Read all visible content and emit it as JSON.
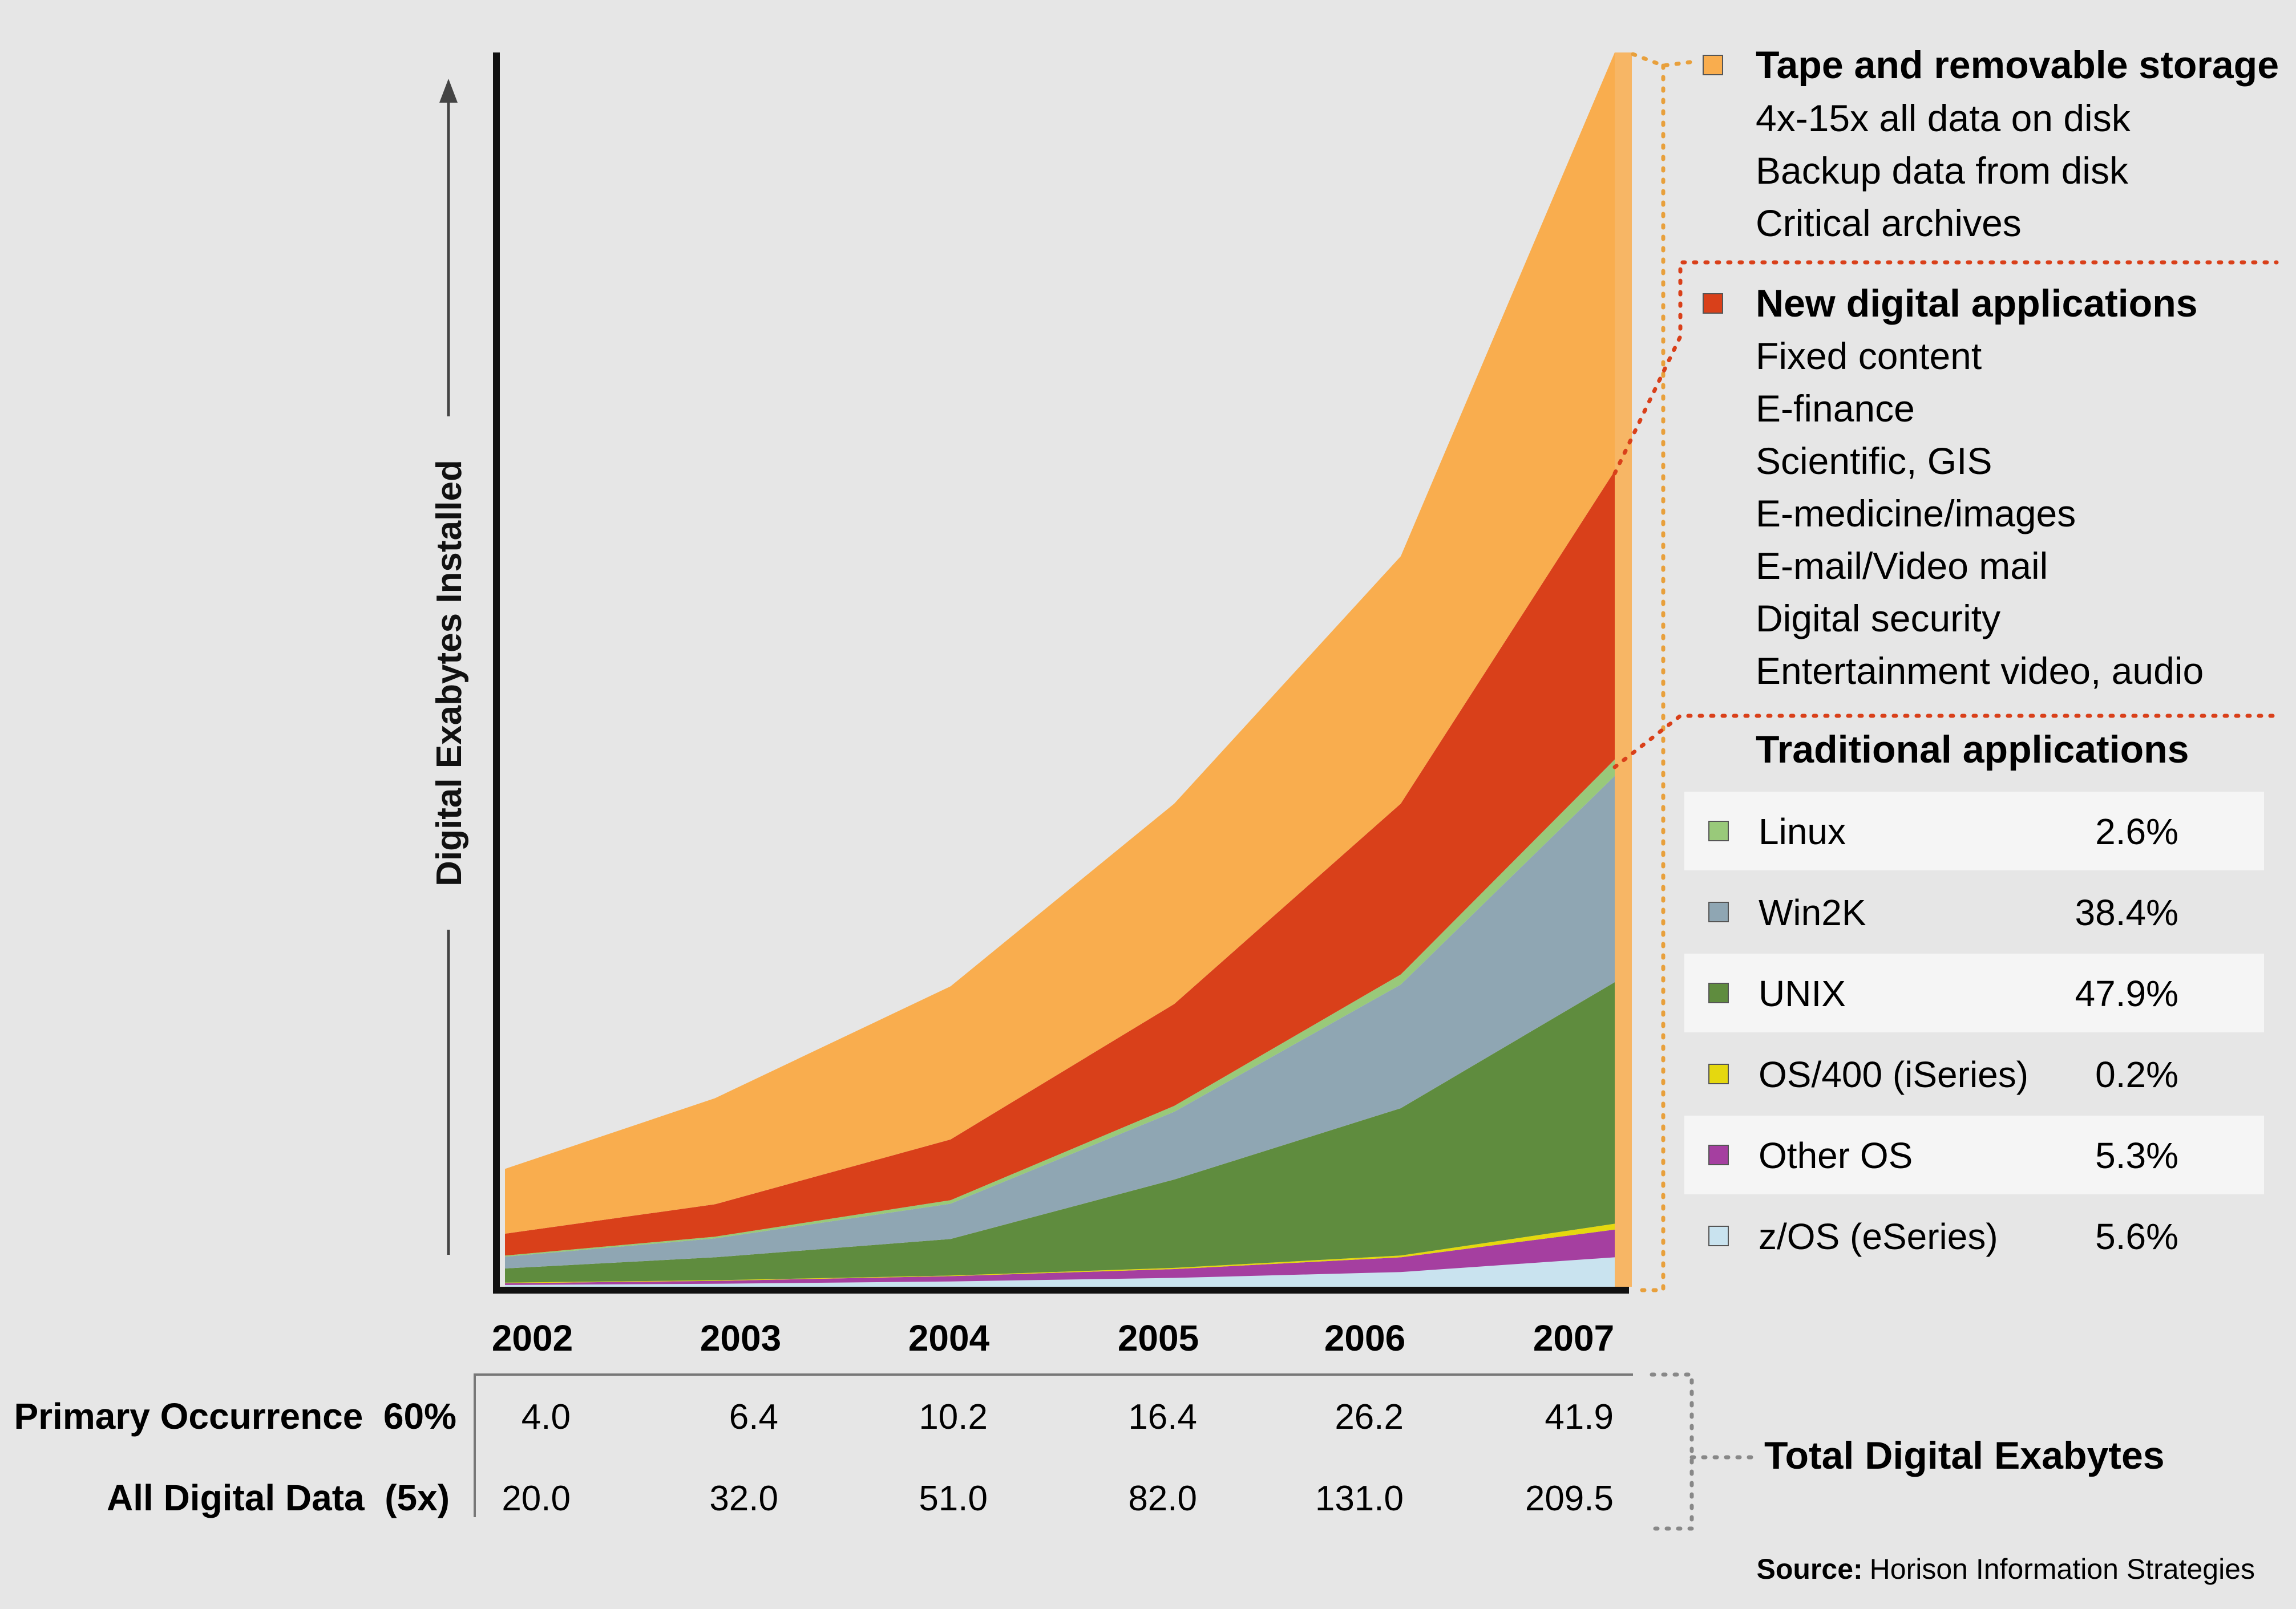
{
  "y_axis_label": "Digital Exabytes Installed",
  "legend": {
    "tape": {
      "title": "Tape and removable storage",
      "color": "#f9ad4e",
      "items": [
        "4x-15x all data on disk",
        "Backup data from disk",
        "Critical archives"
      ]
    },
    "new_apps": {
      "title": "New digital applications",
      "color": "#d9401a",
      "items": [
        "Fixed content",
        "E-finance",
        "Scientific, GIS",
        "E-medicine/images",
        "E-mail/Video mail",
        "Digital security",
        "Entertainment video, audio"
      ]
    },
    "traditional": {
      "title": "Traditional applications",
      "rows": [
        {
          "name": "Linux",
          "pct": "2.6%",
          "color": "#99c97a"
        },
        {
          "name": "Win2K",
          "pct": "38.4%",
          "color": "#8fa6b3"
        },
        {
          "name": "UNIX",
          "pct": "47.9%",
          "color": "#5f8c3e"
        },
        {
          "name": "OS/400 (iSeries)",
          "pct": "0.2%",
          "color": "#e5d80f"
        },
        {
          "name": "Other OS",
          "pct": "5.3%",
          "color": "#a53fa0"
        },
        {
          "name": "z/OS (eSeries)",
          "pct": "5.6%",
          "color": "#c9e3ef"
        }
      ]
    }
  },
  "table": {
    "rows": [
      {
        "label": "Primary Occurrence  60%",
        "values": [
          "4.0",
          "6.4",
          "10.2",
          "16.4",
          "26.2",
          "41.9"
        ]
      },
      {
        "label": "All Digital Data  (5x)",
        "values": [
          "20.0",
          "32.0",
          "51.0",
          "82.0",
          "131.0",
          "209.5"
        ]
      }
    ],
    "total_label": "Total Digital Exabytes"
  },
  "source": {
    "label": "Source:",
    "text": "Horison Information Strategies"
  },
  "chart_data": {
    "type": "area",
    "stacked": true,
    "x": [
      "2002",
      "2003",
      "2004",
      "2005",
      "2006",
      "2007"
    ],
    "ylim": [
      0,
      209.5
    ],
    "ylabel": "Digital Exabytes Installed",
    "series": [
      {
        "name": "z/OS (eSeries)",
        "color": "#c9e3ef",
        "values": [
          0.3,
          0.5,
          0.9,
          1.5,
          2.5,
          5.0
        ]
      },
      {
        "name": "Other OS",
        "color": "#a53fa0",
        "values": [
          0.3,
          0.5,
          0.9,
          1.5,
          2.5,
          4.7
        ]
      },
      {
        "name": "OS/400 (iSeries)",
        "color": "#e5d80f",
        "values": [
          0.1,
          0.1,
          0.1,
          0.2,
          0.3,
          1.0
        ]
      },
      {
        "name": "UNIX",
        "color": "#5f8c3e",
        "values": [
          2.4,
          3.9,
          6.2,
          15.0,
          25.0,
          41.0
        ]
      },
      {
        "name": "Win2K",
        "color": "#8fa6b3",
        "values": [
          2.0,
          3.2,
          6.0,
          11.5,
          21.0,
          35.0
        ]
      },
      {
        "name": "Linux",
        "color": "#99c97a",
        "values": [
          0.2,
          0.3,
          0.6,
          1.0,
          1.7,
          2.8
        ]
      },
      {
        "name": "New digital applications",
        "color": "#d9401a",
        "values": [
          3.7,
          5.5,
          10.3,
          17.3,
          29.0,
          49.0
        ]
      },
      {
        "name": "Tape and removable storage",
        "color": "#f9ad4e",
        "values": [
          11.0,
          18.0,
          26.0,
          34.0,
          42.0,
          71.0
        ]
      }
    ]
  }
}
